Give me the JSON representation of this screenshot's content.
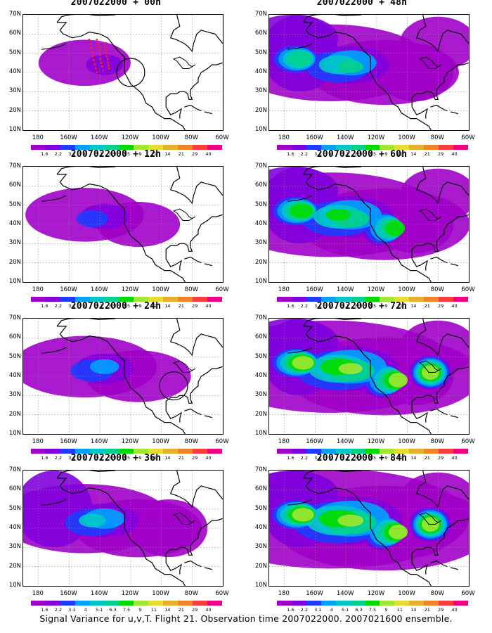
{
  "panels": [
    {
      "title": "2007022000 + 00h",
      "level": 0,
      "hasCircle": true,
      "circle": "west",
      "hasRedDots": true
    },
    {
      "title": "2007022000 + 12h",
      "level": 1,
      "hasCircle": false,
      "hasRedDots": false
    },
    {
      "title": "2007022000 + 24h",
      "level": 2,
      "hasCircle": true,
      "circle": "east",
      "hasRedDots": false
    },
    {
      "title": "2007022000 + 36h",
      "level": 3,
      "hasCircle": false,
      "hasRedDots": false
    },
    {
      "title": "2007022000 + 48h",
      "level": 4,
      "hasCircle": false,
      "hasRedDots": false
    },
    {
      "title": "2007022000 + 60h",
      "level": 5,
      "hasCircle": false,
      "hasRedDots": false
    },
    {
      "title": "2007022000 + 72h",
      "level": 6,
      "hasCircle": false,
      "hasRedDots": false
    },
    {
      "title": "2007022000 + 84h",
      "level": 7,
      "hasCircle": false,
      "hasRedDots": false
    }
  ],
  "y_labels": [
    "70N",
    "60N",
    "50N",
    "40N",
    "30N",
    "20N",
    "10N"
  ],
  "x_labels": [
    "180",
    "160W",
    "140W",
    "120W",
    "100W",
    "80W",
    "60W"
  ],
  "colorbar": {
    "labels": [
      "1.6",
      "2.2",
      "3.1",
      "4",
      "5.1",
      "6.3",
      "7.5",
      "9",
      "11",
      "14",
      "21",
      "29",
      "40"
    ],
    "colors": [
      "#a000c8",
      "#8200dc",
      "#1e3cff",
      "#00a0ff",
      "#00c8c8",
      "#00d28c",
      "#00dc00",
      "#a0e632",
      "#e6dc32",
      "#e6af2d",
      "#f08228",
      "#fa3c3c",
      "#f00082"
    ]
  },
  "caption": "Signal Variance for u,v,T. Flight 21. Observation time 2007022000. 2007021600 ensemble."
}
